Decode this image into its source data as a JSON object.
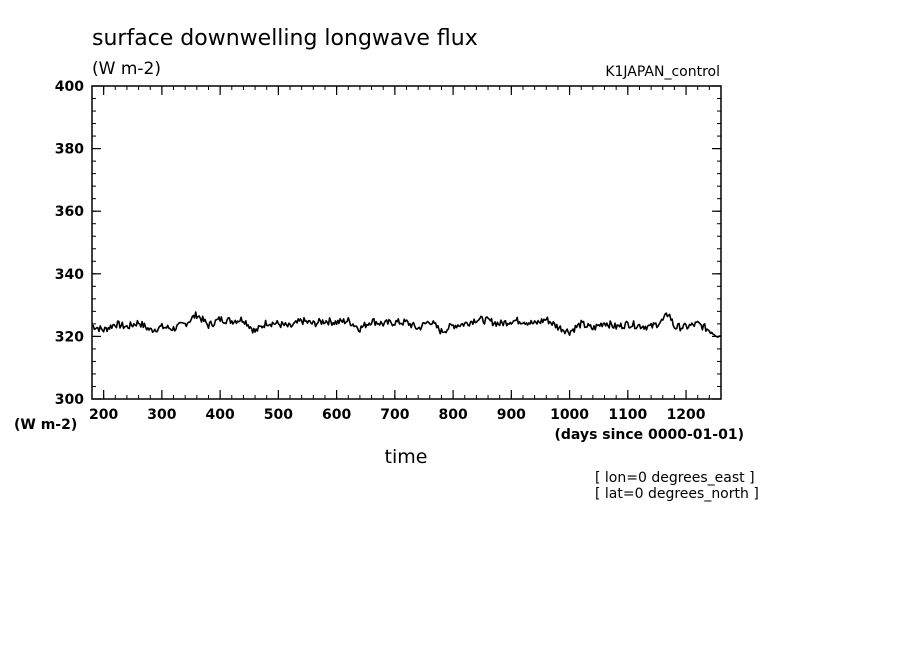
{
  "chart_data": {
    "type": "line",
    "title": "surface downwelling longwave flux",
    "units_label": "(W m-2)",
    "experiment": "K1JAPAN_control",
    "ylabel": "(W m-2)",
    "xlabel": "time",
    "x_units": "(days since 0000-01-01)",
    "xlim": [
      180,
      1260
    ],
    "ylim": [
      300,
      400
    ],
    "x_ticks": [
      200,
      300,
      400,
      500,
      600,
      700,
      800,
      900,
      1000,
      1100,
      1200
    ],
    "y_ticks": [
      300,
      320,
      340,
      360,
      380,
      400
    ],
    "annotations": [
      "[ lon=0 degrees_east ]",
      "[ lat=0 degrees_north ]"
    ],
    "line_color": "#000000",
    "grid": false,
    "series": [
      {
        "x": [
          180,
          200,
          220,
          240,
          260,
          280,
          300,
          320,
          340,
          360,
          380,
          400,
          420,
          440,
          460,
          480,
          500,
          520,
          540,
          560,
          580,
          600,
          620,
          640,
          660,
          680,
          700,
          720,
          740,
          760,
          780,
          800,
          820,
          840,
          860,
          880,
          900,
          920,
          940,
          960,
          980,
          1000,
          1020,
          1040,
          1060,
          1080,
          1100,
          1120,
          1140,
          1160,
          1170,
          1180,
          1200,
          1220,
          1240,
          1260
        ],
        "values": [
          323.5,
          322.0,
          324.0,
          323.0,
          324.5,
          322.0,
          323.0,
          322.5,
          324.0,
          327.0,
          323.5,
          325.5,
          325.0,
          325.5,
          321.5,
          324.5,
          324.0,
          323.0,
          325.0,
          324.0,
          325.0,
          324.5,
          325.0,
          322.5,
          325.0,
          324.0,
          324.5,
          324.5,
          322.5,
          325.0,
          321.5,
          323.5,
          324.0,
          325.5,
          325.0,
          324.0,
          325.0,
          325.0,
          324.0,
          325.5,
          323.0,
          321.5,
          324.0,
          322.5,
          324.5,
          323.0,
          324.0,
          323.5,
          323.0,
          325.0,
          327.5,
          323.0,
          323.0,
          324.0,
          322.0,
          320.0
        ]
      }
    ]
  }
}
